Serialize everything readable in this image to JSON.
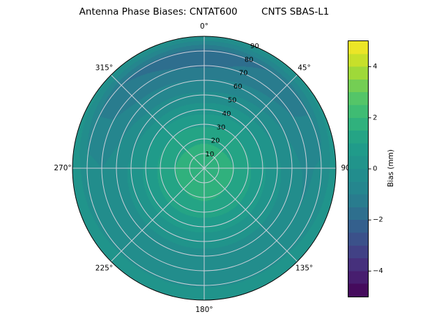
{
  "chart_data": {
    "type": "heatmap",
    "projection": "polar",
    "title": "Antenna Phase Biases: CNTAT600        CNTS SBAS-L1",
    "angular_axis": {
      "angles_deg": [
        0,
        45,
        90,
        135,
        180,
        225,
        270,
        315
      ],
      "labels": [
        "0°",
        "45°",
        "90",
        "135°",
        "180°",
        "225°",
        "270°",
        "315°"
      ],
      "direction": "clockwise",
      "zero_location": "top"
    },
    "radial_axis": {
      "ticks": [
        10,
        20,
        30,
        40,
        50,
        60,
        70,
        80,
        90
      ],
      "max": 90,
      "label_angle_deg": 22.5
    },
    "colorbar": {
      "label": "Bias (mm)",
      "vmin": -5,
      "vmax": 5,
      "level_step": 0.5,
      "colormap": "viridis",
      "ticks": [
        {
          "value": 4,
          "label": "4"
        },
        {
          "value": 2,
          "label": "2"
        },
        {
          "value": 0,
          "label": "0"
        },
        {
          "value": -2,
          "label": "−2"
        },
        {
          "value": -4,
          "label": "−4"
        }
      ]
    },
    "colormap_stops": [
      [
        0.0,
        "#440154"
      ],
      [
        0.1,
        "#482878"
      ],
      [
        0.2,
        "#3e4989"
      ],
      [
        0.3,
        "#31688e"
      ],
      [
        0.4,
        "#26828e"
      ],
      [
        0.5,
        "#21918c"
      ],
      [
        0.6,
        "#1f9e89"
      ],
      [
        0.7,
        "#35b779"
      ],
      [
        0.8,
        "#5ec962"
      ],
      [
        0.9,
        "#b5de2b"
      ],
      [
        1.0,
        "#fde725"
      ]
    ],
    "grid_color": "#ccd0da",
    "grid": {
      "azimuth_deg": [
        0,
        45,
        90,
        135,
        180,
        225,
        270,
        315
      ],
      "zenith_deg": [
        0,
        10,
        20,
        30,
        40,
        50,
        60,
        70,
        80,
        90
      ],
      "bias_mm": [
        [
          1.9,
          1.7,
          1.4,
          0.9,
          0.3,
          -0.4,
          -1.0,
          -1.6,
          -1.8,
          0.1
        ],
        [
          1.9,
          1.7,
          1.4,
          1.0,
          0.4,
          -0.2,
          -0.7,
          -1.2,
          -1.4,
          0.2
        ],
        [
          1.9,
          1.7,
          1.5,
          1.1,
          0.6,
          0.1,
          -0.3,
          -0.6,
          -0.4,
          0.3
        ],
        [
          1.9,
          1.8,
          1.5,
          1.2,
          0.7,
          0.2,
          -0.2,
          -0.4,
          -0.1,
          0.5
        ],
        [
          1.9,
          1.8,
          1.6,
          1.2,
          0.7,
          0.2,
          -0.2,
          -0.4,
          -0.1,
          0.5
        ],
        [
          1.9,
          1.8,
          1.5,
          1.2,
          0.7,
          0.2,
          -0.2,
          -0.4,
          -0.1,
          0.5
        ],
        [
          1.9,
          1.7,
          1.5,
          1.1,
          0.6,
          0.1,
          -0.3,
          -0.5,
          -0.3,
          0.4
        ],
        [
          1.9,
          1.7,
          1.4,
          1.0,
          0.4,
          -0.3,
          -0.8,
          -1.3,
          -1.5,
          0.2
        ]
      ]
    }
  }
}
